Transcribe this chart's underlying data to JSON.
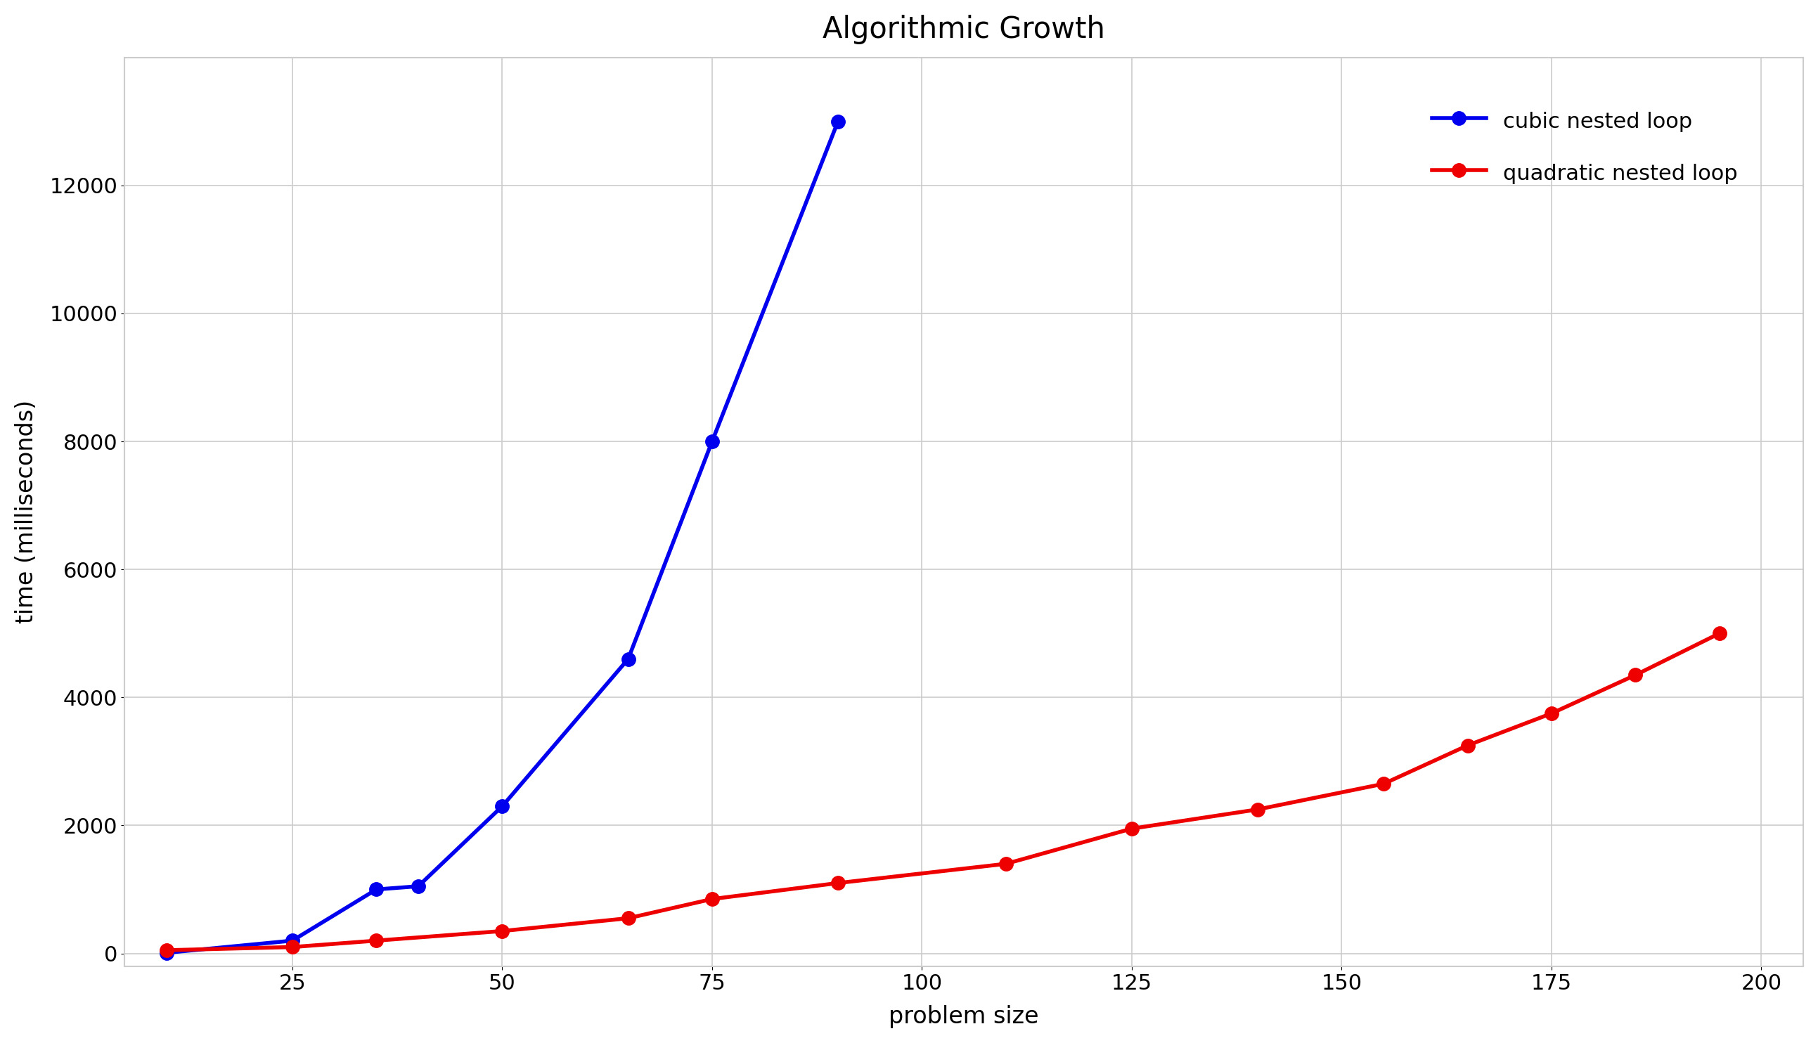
{
  "title": "Algorithmic Growth",
  "xlabel": "problem size",
  "ylabel": "time (milliseconds)",
  "cubic": {
    "label": "cubic nested loop",
    "color": "#0000ee",
    "x": [
      10,
      25,
      35,
      40,
      50,
      65,
      75,
      90
    ],
    "y": [
      10,
      200,
      1000,
      1050,
      2300,
      4600,
      8000,
      13000
    ]
  },
  "quadratic": {
    "label": "quadratic nested loop",
    "color": "#ee0000",
    "x": [
      10,
      25,
      35,
      50,
      65,
      75,
      90,
      110,
      125,
      140,
      155,
      165,
      175,
      185,
      195
    ],
    "y": [
      50,
      100,
      200,
      350,
      550,
      850,
      1100,
      1400,
      1950,
      2250,
      2650,
      3250,
      3750,
      4350,
      5000
    ]
  },
  "xlim": [
    5,
    205
  ],
  "ylim": [
    -200,
    14000
  ],
  "background_color": "#ffffff",
  "grid_color": "#cccccc",
  "spine_color": "#cccccc",
  "title_fontsize": 30,
  "label_fontsize": 24,
  "tick_fontsize": 22,
  "legend_fontsize": 22,
  "line_width": 4.0,
  "marker_size": 14
}
